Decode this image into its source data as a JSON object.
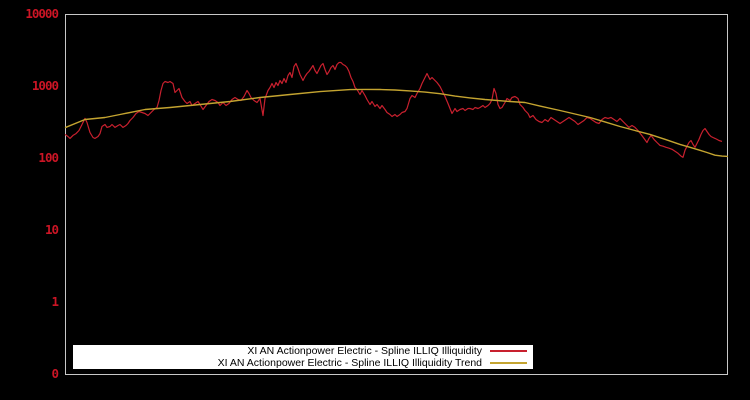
{
  "colors": {
    "background": "#000000",
    "axis_border": "#c8c8c8",
    "tick_label_color": "#cc1525",
    "legend_background": "#ffffff",
    "legend_text_color": "#000000",
    "series_illiq_color": "#c8202e",
    "series_trend_color": "#c4a430"
  },
  "chart_data": {
    "type": "line",
    "title": "",
    "xlabel": "",
    "ylabel": "",
    "x_axis": {
      "tick_labels": []
    },
    "y_axis": {
      "scale": "log",
      "top_value": 10000,
      "ticks": [
        {
          "label": "10000",
          "offset_decades": 0
        },
        {
          "label": "1000",
          "offset_decades": 1
        },
        {
          "label": "100",
          "offset_decades": 2
        },
        {
          "label": "10",
          "offset_decades": 3
        },
        {
          "label": "1",
          "offset_decades": 4
        },
        {
          "label": "0",
          "offset_decades": 5
        }
      ]
    },
    "legend_position": "bottom-center",
    "grid": false,
    "series": [
      {
        "name": "XI AN Actionpower Electric - Spline ILLIQ Illiquidity",
        "color": "#c8202e",
        "points": [
          [
            65,
            216
          ],
          [
            68,
            202
          ],
          [
            70,
            190
          ],
          [
            73,
            209
          ],
          [
            76,
            222
          ],
          [
            79,
            245
          ],
          [
            82,
            297
          ],
          [
            85,
            360
          ],
          [
            87,
            316
          ],
          [
            90,
            230
          ],
          [
            93,
            196
          ],
          [
            95,
            190
          ],
          [
            98,
            202
          ],
          [
            100,
            222
          ],
          [
            102,
            278
          ],
          [
            105,
            297
          ],
          [
            107,
            270
          ],
          [
            110,
            278
          ],
          [
            112,
            297
          ],
          [
            115,
            270
          ],
          [
            118,
            287
          ],
          [
            120,
            297
          ],
          [
            123,
            270
          ],
          [
            126,
            287
          ],
          [
            128,
            306
          ],
          [
            130,
            337
          ],
          [
            133,
            371
          ],
          [
            136,
            422
          ],
          [
            139,
            450
          ],
          [
            142,
            435
          ],
          [
            145,
            422
          ],
          [
            148,
            396
          ],
          [
            151,
            435
          ],
          [
            154,
            479
          ],
          [
            157,
            511
          ],
          [
            159,
            639
          ],
          [
            161,
            880
          ],
          [
            163,
            1101
          ],
          [
            165,
            1174
          ],
          [
            168,
            1137
          ],
          [
            170,
            1174
          ],
          [
            173,
            1101
          ],
          [
            175,
            825
          ],
          [
            177,
            880
          ],
          [
            179,
            938
          ],
          [
            182,
            703
          ],
          [
            185,
            619
          ],
          [
            187,
            581
          ],
          [
            190,
            619
          ],
          [
            192,
            545
          ],
          [
            195,
            581
          ],
          [
            198,
            619
          ],
          [
            200,
            562
          ],
          [
            203,
            479
          ],
          [
            206,
            545
          ],
          [
            209,
            619
          ],
          [
            212,
            660
          ],
          [
            215,
            639
          ],
          [
            218,
            599
          ],
          [
            220,
            545
          ],
          [
            223,
            599
          ],
          [
            226,
            545
          ],
          [
            229,
            581
          ],
          [
            232,
            660
          ],
          [
            235,
            703
          ],
          [
            238,
            660
          ],
          [
            241,
            639
          ],
          [
            244,
            726
          ],
          [
            247,
            880
          ],
          [
            249,
            799
          ],
          [
            251,
            703
          ],
          [
            254,
            639
          ],
          [
            257,
            599
          ],
          [
            260,
            681
          ],
          [
            263,
            396
          ],
          [
            265,
            681
          ],
          [
            268,
            880
          ],
          [
            270,
            968
          ],
          [
            272,
            1101
          ],
          [
            274,
            968
          ],
          [
            276,
            1137
          ],
          [
            278,
            1033
          ],
          [
            280,
            1212
          ],
          [
            282,
            1101
          ],
          [
            284,
            1292
          ],
          [
            286,
            1137
          ],
          [
            288,
            1422
          ],
          [
            290,
            1565
          ],
          [
            292,
            1334
          ],
          [
            294,
            1896
          ],
          [
            296,
            2087
          ],
          [
            298,
            1778
          ],
          [
            300,
            1468
          ],
          [
            303,
            1212
          ],
          [
            305,
            1377
          ],
          [
            307,
            1516
          ],
          [
            309,
            1616
          ],
          [
            311,
            1778
          ],
          [
            313,
            1958
          ],
          [
            315,
            1668
          ],
          [
            317,
            1516
          ],
          [
            319,
            1722
          ],
          [
            321,
            1958
          ],
          [
            323,
            2087
          ],
          [
            325,
            1722
          ],
          [
            327,
            1468
          ],
          [
            329,
            1616
          ],
          [
            331,
            1836
          ],
          [
            333,
            1958
          ],
          [
            335,
            1722
          ],
          [
            337,
            2022
          ],
          [
            339,
            2154
          ],
          [
            341,
            2154
          ],
          [
            343,
            2022
          ],
          [
            345,
            1958
          ],
          [
            347,
            1836
          ],
          [
            349,
            1616
          ],
          [
            351,
            1334
          ],
          [
            353,
            1174
          ],
          [
            355,
            968
          ],
          [
            357,
            908
          ],
          [
            360,
            774
          ],
          [
            362,
            880
          ],
          [
            365,
            750
          ],
          [
            367,
            660
          ],
          [
            370,
            562
          ],
          [
            372,
            619
          ],
          [
            375,
            527
          ],
          [
            377,
            562
          ],
          [
            380,
            495
          ],
          [
            382,
            545
          ],
          [
            385,
            479
          ],
          [
            387,
            435
          ],
          [
            390,
            408
          ],
          [
            392,
            383
          ],
          [
            395,
            408
          ],
          [
            397,
            383
          ],
          [
            400,
            408
          ],
          [
            402,
            435
          ],
          [
            405,
            450
          ],
          [
            407,
            495
          ],
          [
            410,
            681
          ],
          [
            412,
            750
          ],
          [
            415,
            703
          ],
          [
            417,
            799
          ],
          [
            420,
            938
          ],
          [
            422,
            1101
          ],
          [
            425,
            1334
          ],
          [
            427,
            1516
          ],
          [
            430,
            1251
          ],
          [
            432,
            1334
          ],
          [
            435,
            1212
          ],
          [
            437,
            1137
          ],
          [
            440,
            1000
          ],
          [
            443,
            825
          ],
          [
            445,
            726
          ],
          [
            448,
            581
          ],
          [
            450,
            495
          ],
          [
            452,
            422
          ],
          [
            455,
            495
          ],
          [
            457,
            450
          ],
          [
            460,
            479
          ],
          [
            463,
            495
          ],
          [
            465,
            464
          ],
          [
            468,
            495
          ],
          [
            470,
            495
          ],
          [
            473,
            479
          ],
          [
            475,
            511
          ],
          [
            478,
            495
          ],
          [
            480,
            511
          ],
          [
            483,
            545
          ],
          [
            485,
            511
          ],
          [
            488,
            545
          ],
          [
            490,
            581
          ],
          [
            492,
            660
          ],
          [
            494,
            938
          ],
          [
            496,
            799
          ],
          [
            498,
            562
          ],
          [
            500,
            495
          ],
          [
            502,
            511
          ],
          [
            505,
            599
          ],
          [
            507,
            681
          ],
          [
            510,
            639
          ],
          [
            512,
            703
          ],
          [
            515,
            726
          ],
          [
            518,
            681
          ],
          [
            520,
            562
          ],
          [
            523,
            511
          ],
          [
            525,
            464
          ],
          [
            528,
            422
          ],
          [
            530,
            371
          ],
          [
            533,
            396
          ],
          [
            536,
            348
          ],
          [
            539,
            327
          ],
          [
            542,
            316
          ],
          [
            545,
            348
          ],
          [
            548,
            327
          ],
          [
            551,
            371
          ],
          [
            554,
            348
          ],
          [
            557,
            327
          ],
          [
            560,
            306
          ],
          [
            563,
            327
          ],
          [
            566,
            348
          ],
          [
            569,
            371
          ],
          [
            572,
            348
          ],
          [
            575,
            327
          ],
          [
            578,
            297
          ],
          [
            581,
            316
          ],
          [
            584,
            337
          ],
          [
            587,
            371
          ],
          [
            590,
            360
          ],
          [
            593,
            337
          ],
          [
            596,
            316
          ],
          [
            599,
            306
          ],
          [
            602,
            348
          ],
          [
            605,
            371
          ],
          [
            608,
            360
          ],
          [
            611,
            371
          ],
          [
            614,
            348
          ],
          [
            617,
            327
          ],
          [
            620,
            360
          ],
          [
            623,
            327
          ],
          [
            626,
            297
          ],
          [
            629,
            270
          ],
          [
            632,
            287
          ],
          [
            635,
            270
          ],
          [
            638,
            245
          ],
          [
            641,
            216
          ],
          [
            644,
            190
          ],
          [
            647,
            167
          ],
          [
            649,
            190
          ],
          [
            651,
            209
          ],
          [
            654,
            184
          ],
          [
            657,
            167
          ],
          [
            660,
            152
          ],
          [
            663,
            148
          ],
          [
            666,
            143
          ],
          [
            669,
            139
          ],
          [
            672,
            134
          ],
          [
            675,
            126
          ],
          [
            678,
            118
          ],
          [
            681,
            108
          ],
          [
            683,
            104
          ],
          [
            685,
            130
          ],
          [
            687,
            148
          ],
          [
            689,
            167
          ],
          [
            691,
            178
          ],
          [
            693,
            157
          ],
          [
            695,
            143
          ],
          [
            697,
            162
          ],
          [
            699,
            184
          ],
          [
            701,
            216
          ],
          [
            703,
            245
          ],
          [
            705,
            261
          ],
          [
            707,
            237
          ],
          [
            709,
            216
          ],
          [
            711,
            202
          ],
          [
            713,
            196
          ],
          [
            715,
            190
          ],
          [
            717,
            184
          ],
          [
            719,
            178
          ],
          [
            722,
            173
          ]
        ]
      },
      {
        "name": "XI AN Actionpower Electric - Spline ILLIQ Illiquidity Trend",
        "color": "#c4a430",
        "points": [
          [
            65,
            268
          ],
          [
            85,
            348
          ],
          [
            105,
            371
          ],
          [
            120,
            408
          ],
          [
            145,
            479
          ],
          [
            170,
            511
          ],
          [
            200,
            562
          ],
          [
            230,
            619
          ],
          [
            260,
            703
          ],
          [
            290,
            774
          ],
          [
            320,
            850
          ],
          [
            350,
            905
          ],
          [
            365,
            910
          ],
          [
            380,
            908
          ],
          [
            395,
            895
          ],
          [
            410,
            870
          ],
          [
            425,
            835
          ],
          [
            440,
            795
          ],
          [
            455,
            735
          ],
          [
            470,
            695
          ],
          [
            485,
            660
          ],
          [
            510,
            619
          ],
          [
            525,
            599
          ],
          [
            540,
            535
          ],
          [
            560,
            464
          ],
          [
            575,
            415
          ],
          [
            590,
            371
          ],
          [
            605,
            322
          ],
          [
            620,
            278
          ],
          [
            635,
            245
          ],
          [
            650,
            216
          ],
          [
            665,
            185
          ],
          [
            680,
            157
          ],
          [
            690,
            143
          ],
          [
            700,
            130
          ],
          [
            707,
            121
          ],
          [
            715,
            111
          ],
          [
            722,
            108
          ],
          [
            728,
            107
          ]
        ]
      }
    ]
  }
}
